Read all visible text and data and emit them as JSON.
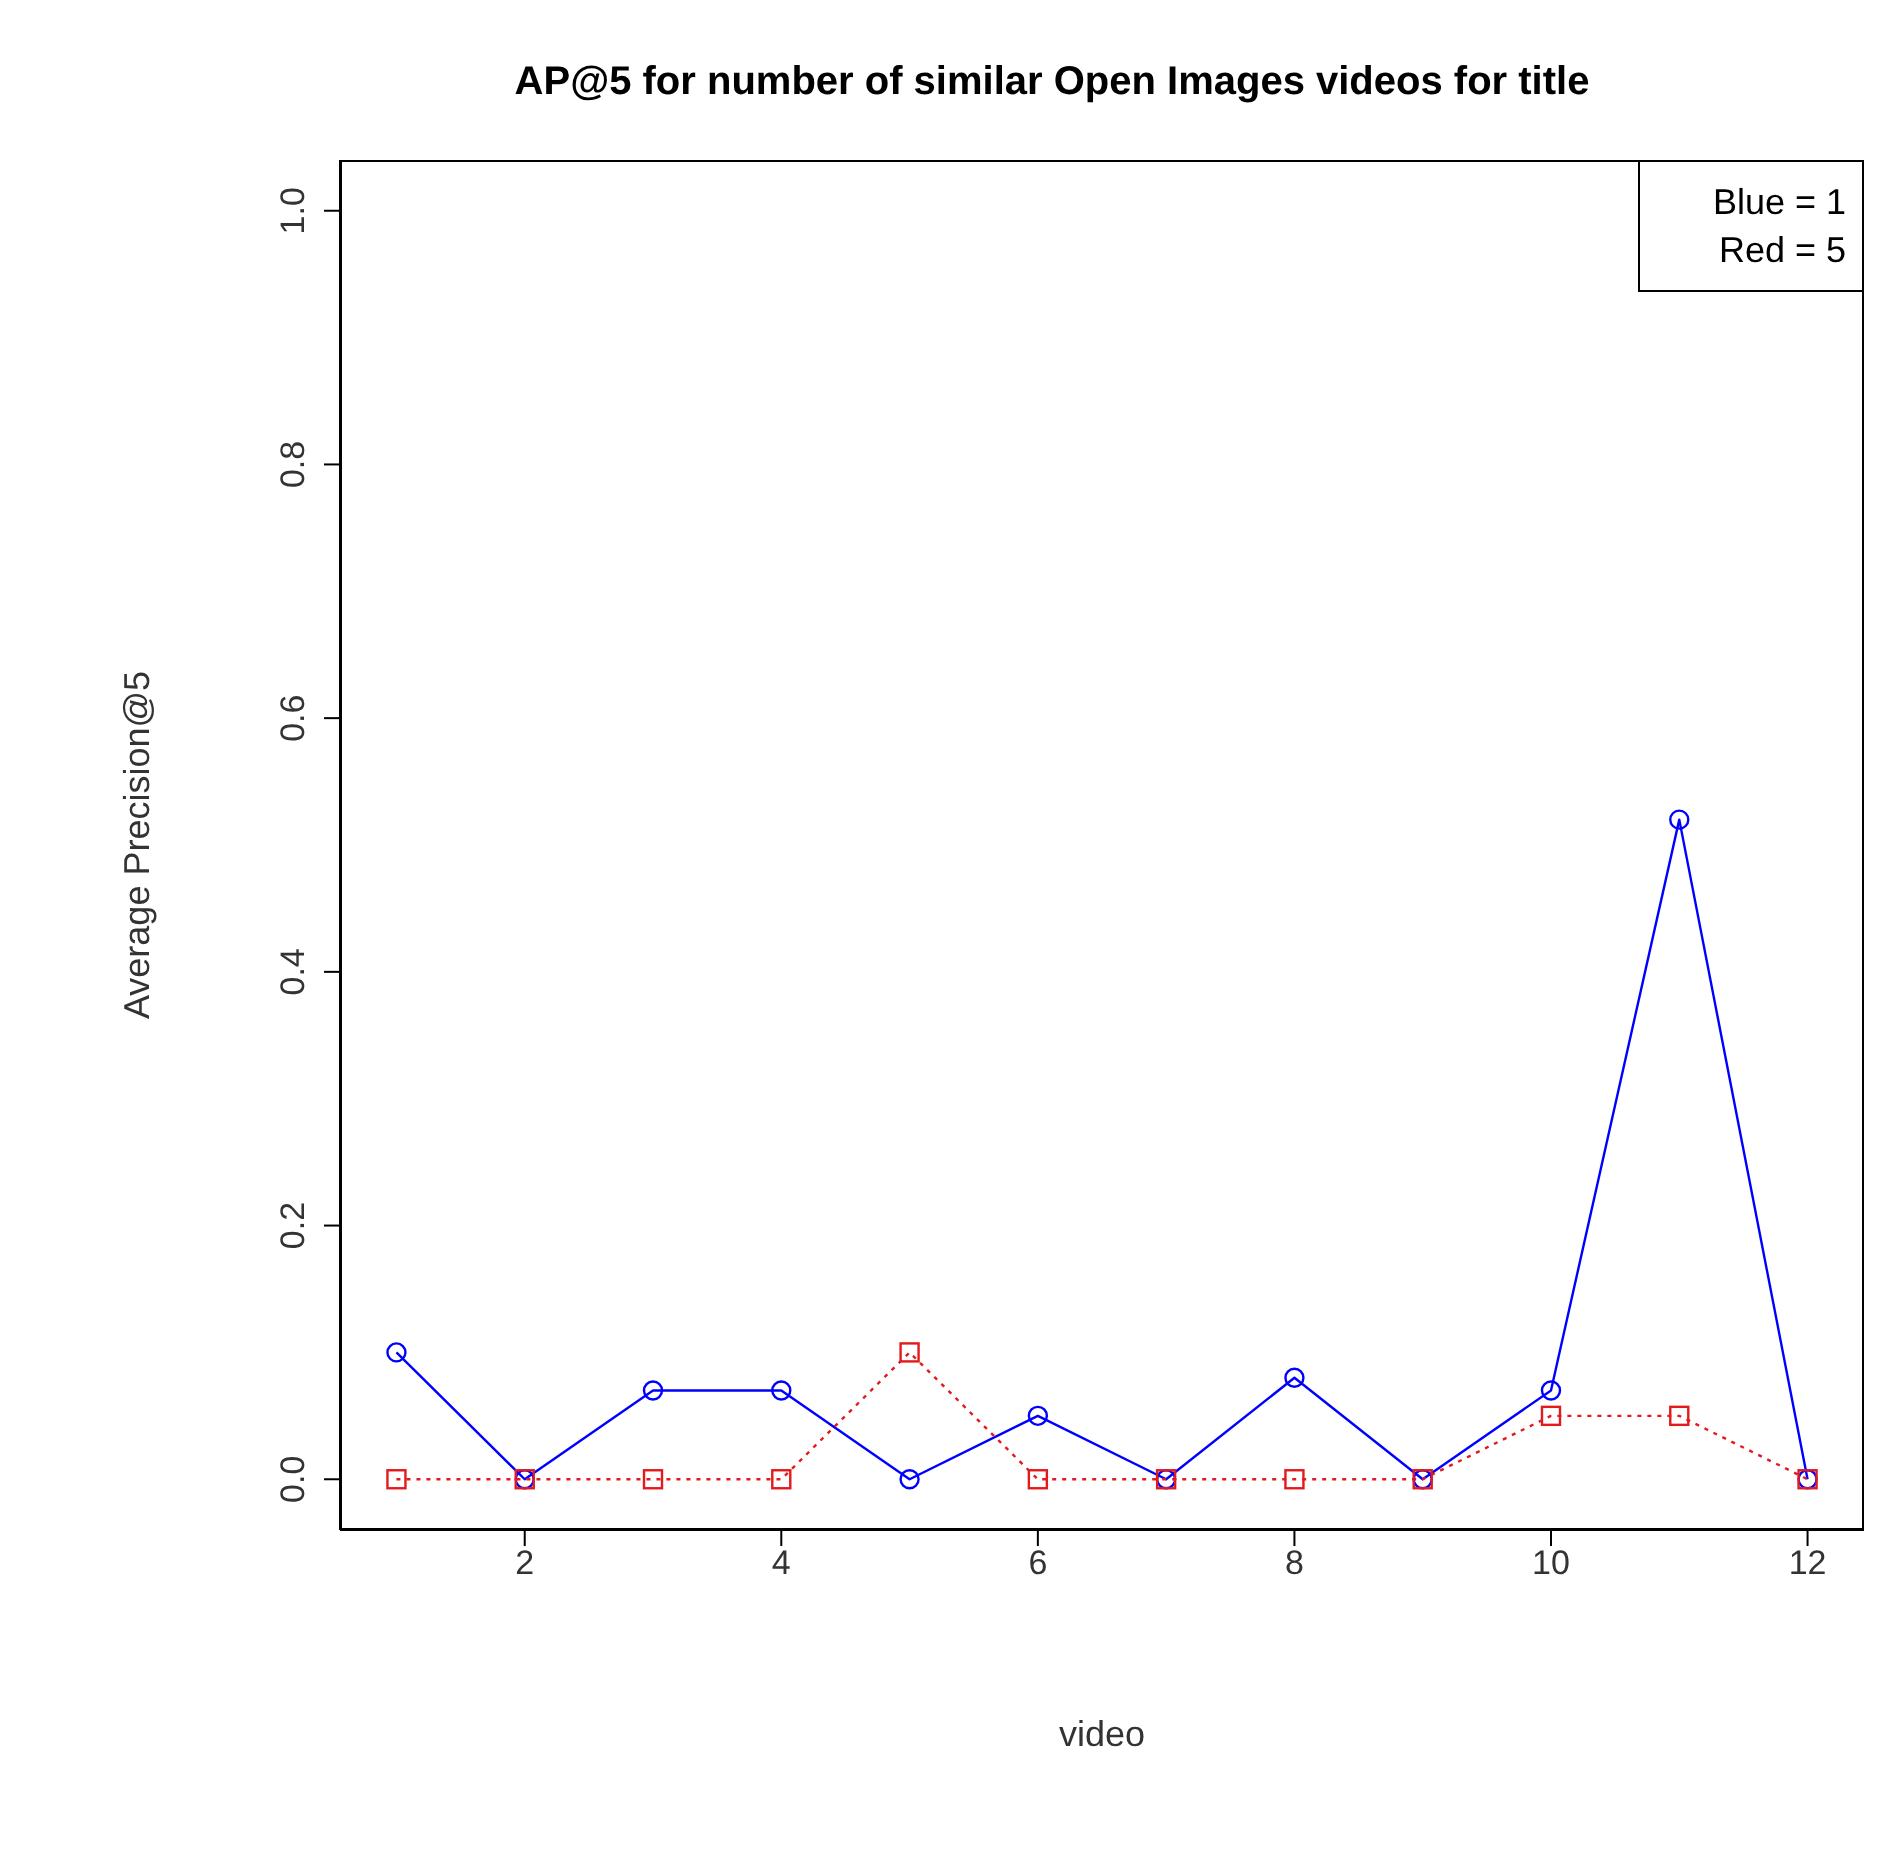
{
  "chart_data": {
    "type": "line",
    "title": "AP@5 for number of similar Open Images videos for title",
    "xlabel": "video",
    "ylabel": "Average Precision@5",
    "x": [
      1,
      2,
      3,
      4,
      5,
      6,
      7,
      8,
      9,
      10,
      11,
      12
    ],
    "series": [
      {
        "color": "#0000ff",
        "marker": "circle",
        "line_style": "solid",
        "values": [
          0.1,
          0,
          0.07,
          0.07,
          0,
          0.05,
          0,
          0.08,
          0,
          0.07,
          0.52,
          0
        ]
      },
      {
        "color": "#e31a1c",
        "marker": "square",
        "line_style": "dotted",
        "values": [
          0,
          0,
          0,
          0,
          0.1,
          0,
          0,
          0,
          0,
          0.05,
          0.05,
          0
        ]
      }
    ],
    "xlim": [
      0.56,
      12.44
    ],
    "xticks": [
      2,
      4,
      6,
      8,
      10,
      12
    ],
    "ylim": [
      -0.04,
      1.04
    ],
    "yticks": [
      {
        "value": 0,
        "label": "0.0"
      },
      {
        "value": 0.2,
        "label": "0.2"
      },
      {
        "value": 0.4,
        "label": "0.4"
      },
      {
        "value": 0.6,
        "label": "0.6"
      },
      {
        "value": 0.8,
        "label": "0.8"
      },
      {
        "value": 1,
        "label": "1.0"
      }
    ],
    "grid": false,
    "annotations": [
      "Blue = 1",
      "Red = 5"
    ]
  }
}
